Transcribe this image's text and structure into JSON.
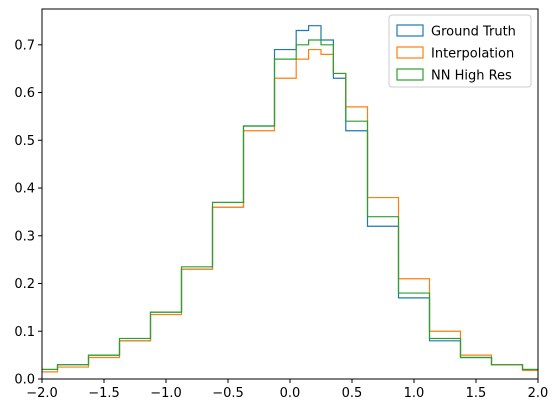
{
  "chart_data": {
    "type": "histogram",
    "title": "",
    "xlabel": "",
    "ylabel": "",
    "xlim": [
      -2.0,
      2.0
    ],
    "ylim": [
      0.0,
      0.775
    ],
    "x_ticks": [
      "−2.0",
      "−1.5",
      "−1.0",
      "−0.5",
      "0.0",
      "0.5",
      "1.0",
      "1.5",
      "2.0"
    ],
    "y_ticks": [
      "0.0",
      "0.1",
      "0.2",
      "0.3",
      "0.4",
      "0.5",
      "0.6",
      "0.7"
    ],
    "x_tick_values": [
      -2.0,
      -1.5,
      -1.0,
      -0.5,
      0.0,
      0.5,
      1.0,
      1.5,
      2.0
    ],
    "y_tick_values": [
      0.0,
      0.1,
      0.2,
      0.3,
      0.4,
      0.5,
      0.6,
      0.7
    ],
    "grid": false,
    "legend_position": "top-right",
    "series": [
      {
        "name": "Ground Truth",
        "color": "#1f77b4",
        "x": [
          -2.0,
          -1.75,
          -1.5,
          -1.25,
          -1.0,
          -0.75,
          -0.5,
          -0.25,
          0.0,
          0.1,
          0.2,
          0.3,
          0.4,
          0.5,
          0.75,
          1.0,
          1.25,
          1.5,
          1.75,
          2.0
        ],
        "y": [
          0.02,
          0.03,
          0.05,
          0.08,
          0.14,
          0.23,
          0.36,
          0.53,
          0.69,
          0.73,
          0.74,
          0.71,
          0.63,
          0.52,
          0.32,
          0.17,
          0.08,
          0.045,
          0.03,
          0.02
        ]
      },
      {
        "name": "Interpolation",
        "color": "#ff7f0e",
        "x": [
          -2.0,
          -1.75,
          -1.5,
          -1.25,
          -1.0,
          -0.75,
          -0.5,
          -0.25,
          0.0,
          0.1,
          0.2,
          0.3,
          0.4,
          0.5,
          0.75,
          1.0,
          1.25,
          1.5,
          1.75,
          2.0
        ],
        "y": [
          0.015,
          0.025,
          0.045,
          0.08,
          0.135,
          0.23,
          0.36,
          0.52,
          0.63,
          0.67,
          0.69,
          0.68,
          0.64,
          0.57,
          0.38,
          0.21,
          0.1,
          0.05,
          0.03,
          0.018
        ]
      },
      {
        "name": "NN High Res",
        "color": "#2ca02c",
        "x": [
          -2.0,
          -1.75,
          -1.5,
          -1.25,
          -1.0,
          -0.75,
          -0.5,
          -0.25,
          0.0,
          0.1,
          0.2,
          0.3,
          0.4,
          0.5,
          0.75,
          1.0,
          1.25,
          1.5,
          1.75,
          2.0
        ],
        "y": [
          0.02,
          0.03,
          0.05,
          0.085,
          0.14,
          0.235,
          0.37,
          0.53,
          0.67,
          0.7,
          0.71,
          0.7,
          0.64,
          0.54,
          0.34,
          0.18,
          0.085,
          0.045,
          0.03,
          0.02
        ]
      }
    ]
  }
}
